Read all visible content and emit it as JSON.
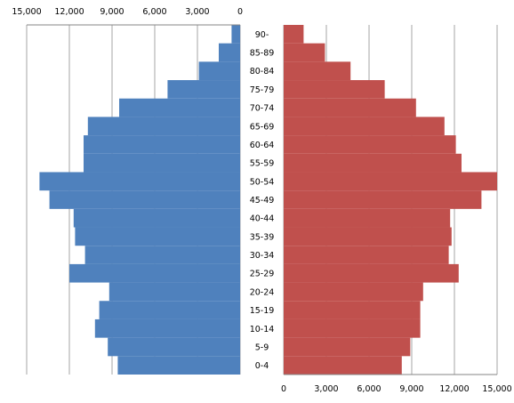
{
  "chart_data": {
    "type": "bar",
    "orientation": "horizontal",
    "layout": "population-pyramid",
    "title": "",
    "xlabel": "",
    "ylabel": "",
    "categories": [
      "0-4",
      "5-9",
      "10-14",
      "15-19",
      "20-24",
      "25-29",
      "30-34",
      "35-39",
      "40-44",
      "45-49",
      "50-54",
      "55-59",
      "60-64",
      "65-69",
      "70-74",
      "75-79",
      "80-84",
      "85-89",
      "90-"
    ],
    "series": [
      {
        "side": "left",
        "color": "#4f81bd",
        "values": [
          8600,
          9300,
          10200,
          9900,
          9200,
          12000,
          10900,
          11600,
          11700,
          13400,
          14100,
          11000,
          11000,
          10700,
          8500,
          5100,
          2900,
          1500,
          600
        ]
      },
      {
        "side": "right",
        "color": "#c0504d",
        "values": [
          8300,
          8900,
          9600,
          9600,
          9800,
          12300,
          11600,
          11800,
          11700,
          13900,
          15000,
          12500,
          12100,
          11300,
          9300,
          7100,
          4700,
          2900,
          1400
        ]
      }
    ],
    "left_axis": {
      "xlim": [
        15000,
        0
      ],
      "ticks": [
        "15,000",
        "12,000",
        "9,000",
        "6,000",
        "3,000",
        "0"
      ],
      "position": "top"
    },
    "right_axis": {
      "xlim": [
        0,
        15000
      ],
      "ticks": [
        "0",
        "3,000",
        "6,000",
        "9,000",
        "12,000",
        "15,000"
      ],
      "position": "bottom"
    },
    "grid": true,
    "legend": "none"
  }
}
